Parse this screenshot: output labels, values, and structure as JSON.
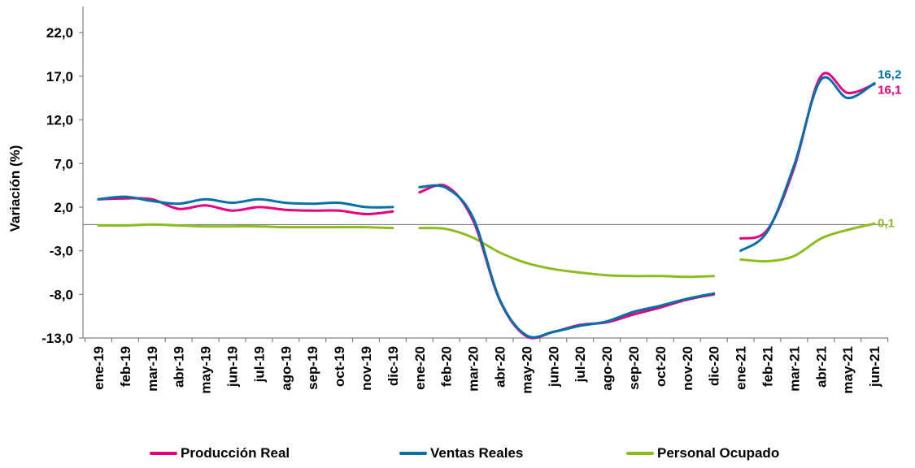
{
  "chart_data": {
    "type": "line",
    "title": "",
    "xlabel": "",
    "ylabel": "Variación (%)",
    "ylim": [
      -13.0,
      25.0
    ],
    "yticks": [
      "22,0",
      "17,0",
      "12,0",
      "7,0",
      "2,0",
      "-3,0",
      "-8,0",
      "-13,0"
    ],
    "ytick_values": [
      22,
      17,
      12,
      7,
      2,
      -3,
      -8,
      -13
    ],
    "baseline": 0,
    "grid": false,
    "legend_position": "bottom",
    "categories": [
      "ene-19",
      "feb-19",
      "mar-19",
      "abr-19",
      "may-19",
      "jun-19",
      "jul-19",
      "ago-19",
      "sep-19",
      "oct-19",
      "nov-19",
      "dic-19",
      "ene-20",
      "feb-20",
      "mar-20",
      "abr-20",
      "may-20",
      "jun-20",
      "jul-20",
      "ago-20",
      "sep-20",
      "oct-20",
      "nov-20",
      "dic-20",
      "ene-21",
      "feb-21",
      "mar-21",
      "abr-21",
      "may-21",
      "jun-21"
    ],
    "series": [
      {
        "name": "Producción Real",
        "color": "#e6007e",
        "values": [
          2.9,
          3.0,
          2.9,
          1.8,
          2.2,
          1.6,
          2.0,
          1.7,
          1.6,
          1.6,
          1.2,
          1.5,
          3.7,
          4.4,
          0.5,
          -8.7,
          -12.8,
          -12.3,
          -11.5,
          -11.2,
          -10.3,
          -9.5,
          -8.6,
          -8.0,
          -1.6,
          -0.6,
          6.5,
          17.0,
          15.1,
          16.1
        ]
      },
      {
        "name": "Ventas Reales",
        "color": "#0070a8",
        "values": [
          2.9,
          3.2,
          2.7,
          2.4,
          2.9,
          2.5,
          2.9,
          2.5,
          2.4,
          2.5,
          2.0,
          2.0,
          4.3,
          4.2,
          0.8,
          -8.6,
          -12.7,
          -12.3,
          -11.6,
          -11.1,
          -10.0,
          -9.3,
          -8.5,
          -7.9,
          -3.0,
          -0.8,
          6.8,
          16.6,
          14.5,
          16.2
        ]
      },
      {
        "name": "Personal Ocupado",
        "color": "#8cbd1e",
        "values": [
          -0.1,
          -0.1,
          0.0,
          -0.1,
          -0.2,
          -0.2,
          -0.2,
          -0.3,
          -0.3,
          -0.3,
          -0.3,
          -0.4,
          -0.4,
          -0.5,
          -1.5,
          -3.2,
          -4.4,
          -5.1,
          -5.5,
          -5.8,
          -5.9,
          -5.9,
          -6.0,
          -5.9,
          -4.0,
          -4.2,
          -3.6,
          -1.6,
          -0.6,
          0.1
        ]
      }
    ],
    "segments": [
      [
        0,
        11
      ],
      [
        12,
        23
      ],
      [
        24,
        29
      ]
    ],
    "end_labels": [
      {
        "series": "Ventas Reales",
        "text": "16,2",
        "color": "#0070a8"
      },
      {
        "series": "Producción Real",
        "text": "16,1",
        "color": "#e6007e"
      },
      {
        "series": "Personal Ocupado",
        "text": "0,1",
        "color": "#8cbd1e"
      }
    ]
  }
}
